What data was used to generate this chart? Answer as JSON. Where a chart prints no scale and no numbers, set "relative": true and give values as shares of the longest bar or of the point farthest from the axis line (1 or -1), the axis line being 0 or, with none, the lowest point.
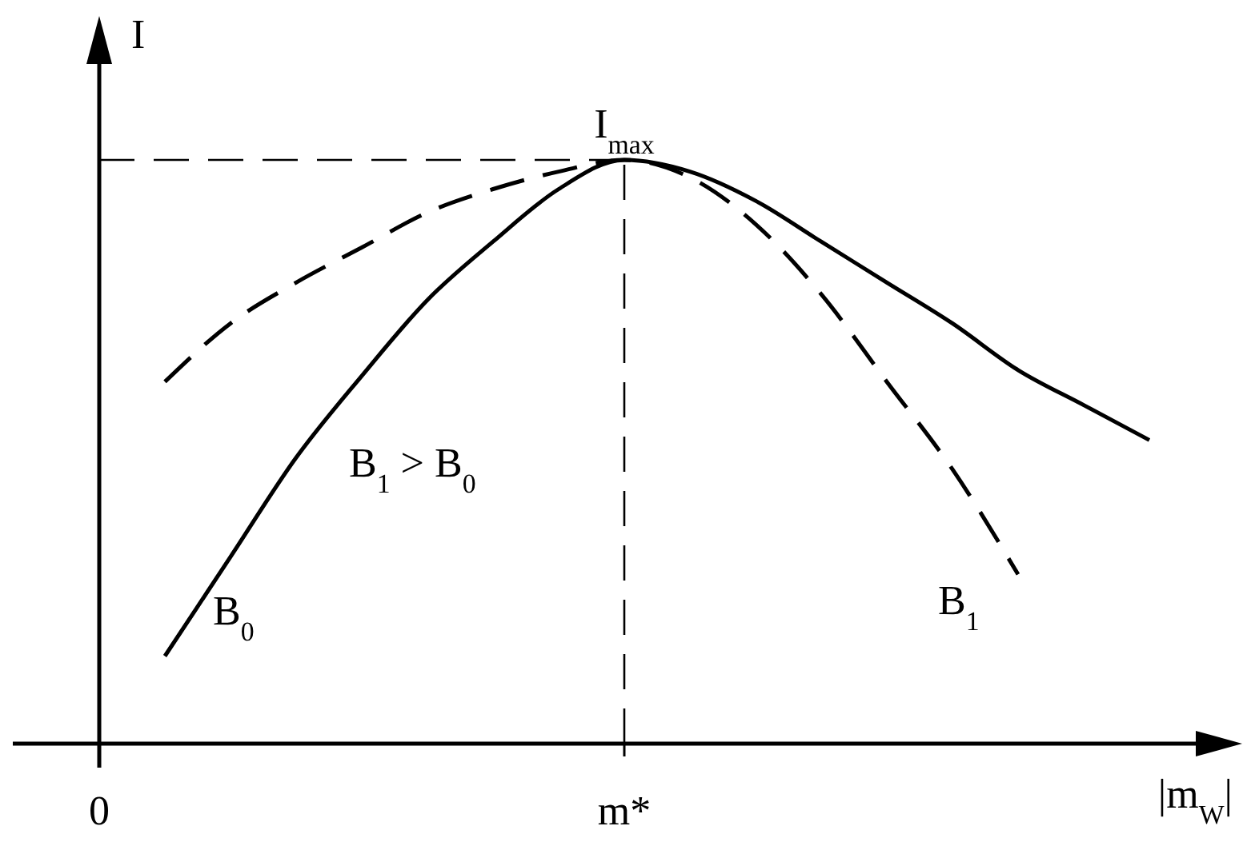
{
  "chart_data": {
    "type": "line",
    "relative": true,
    "xlabel": "|m$_{W}$|",
    "ylabel": "I",
    "categories": [
      "0",
      null,
      null,
      null,
      null,
      null,
      null,
      null,
      "m*",
      null,
      null,
      null,
      null,
      null,
      null,
      null,
      null
    ],
    "series": [
      {
        "name": "B$_{0}$",
        "color": "#000000",
        "line_style": "solid",
        "values": [
          null,
          0.15,
          0.32,
          0.49,
          0.63,
          0.76,
          0.86,
          0.95,
          1,
          0.98,
          0.93,
          0.86,
          0.79,
          0.72,
          0.64,
          0.58,
          0.52
        ]
      },
      {
        "name": "B$_{1}$",
        "color": "#000000",
        "line_style": "dashed",
        "values": [
          null,
          0.62,
          0.72,
          0.79,
          0.85,
          0.91,
          0.95,
          0.98,
          1,
          0.97,
          0.89,
          0.77,
          0.62,
          0.47,
          0.29,
          null,
          null
        ]
      }
    ],
    "marker": "none",
    "ref_lines": [
      {
        "axis": "x",
        "value": "m*",
        "line_style": "dashed",
        "color": "#000000"
      },
      {
        "axis": "y",
        "value": 1,
        "line_style": "dashed",
        "color": "#000000"
      }
    ],
    "annotations": [
      {
        "text": "I$_{max}$",
        "x": "m*",
        "y": 1
      },
      "B$_{1}$ > B$_{0}$"
    ]
  }
}
